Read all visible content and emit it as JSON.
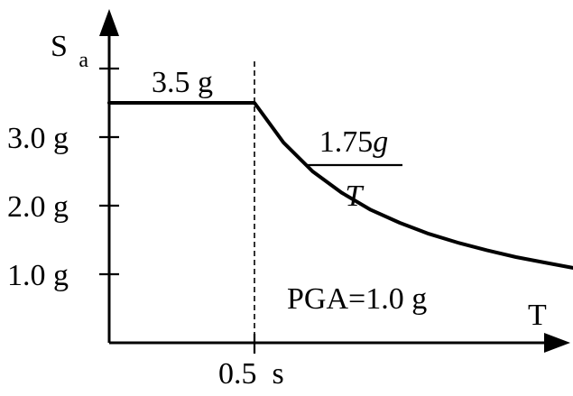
{
  "chart_data": {
    "type": "line",
    "title": "",
    "ylabel_main": "S",
    "ylabel_sub": "a",
    "xlabel": "T",
    "y_ticks": [
      {
        "value": 1.0,
        "label": "1.0 g"
      },
      {
        "value": 2.0,
        "label": "2.0 g"
      },
      {
        "value": 3.0,
        "label": "3.0 g"
      },
      {
        "value": 4.0,
        "label": ""
      }
    ],
    "x_ticks": [
      {
        "value": 0.5,
        "label": "0.5  s"
      }
    ],
    "plateau_label": "3.5 g",
    "plateau_value": 3.5,
    "corner_period": 0.5,
    "formula_numerator": "1.75g",
    "formula_denominator": "T",
    "annotation": "PGA=1.0 g",
    "series": [
      {
        "points": [
          [
            0.0,
            3.5
          ],
          [
            0.5,
            3.5
          ],
          [
            0.6,
            2.92
          ],
          [
            0.7,
            2.5
          ],
          [
            0.8,
            2.19
          ],
          [
            0.9,
            1.94
          ],
          [
            1.0,
            1.75
          ],
          [
            1.1,
            1.59
          ],
          [
            1.2,
            1.46
          ],
          [
            1.3,
            1.35
          ],
          [
            1.4,
            1.25
          ],
          [
            1.5,
            1.17
          ],
          [
            1.6,
            1.09
          ]
        ]
      }
    ],
    "xlim": [
      0,
      1.6
    ],
    "ylim": [
      0,
      4.0
    ],
    "grid": false,
    "color": "#000000"
  }
}
